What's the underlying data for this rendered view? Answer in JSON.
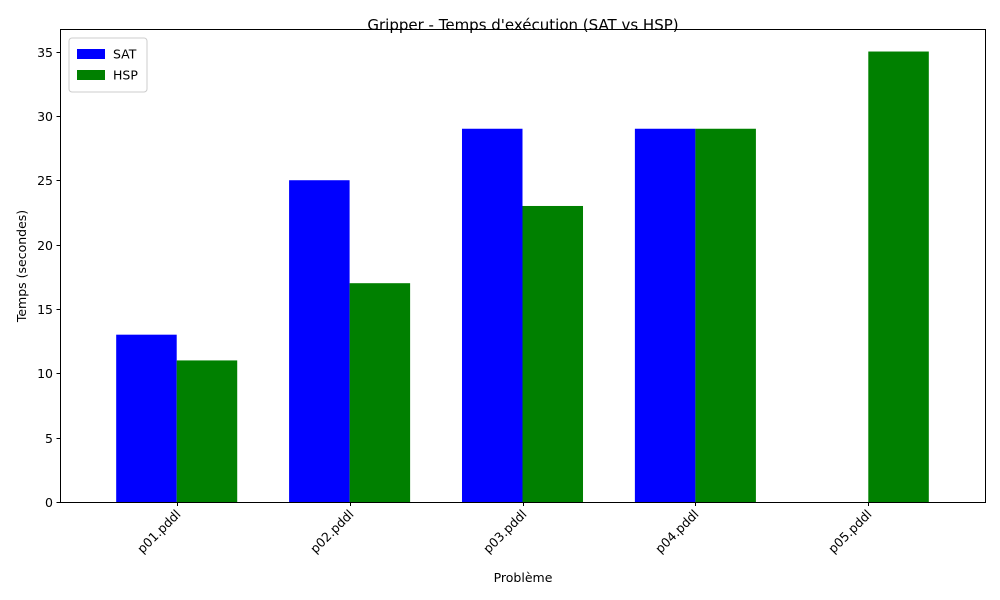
{
  "chart_data": {
    "type": "bar",
    "title": "Gripper - Temps d'exécution (SAT vs HSP)",
    "xlabel": "Problème",
    "ylabel": "Temps (secondes)",
    "categories": [
      "p01.pddl",
      "p02.pddl",
      "p03.pddl",
      "p04.pddl",
      "p05.pddl"
    ],
    "series": [
      {
        "name": "SAT",
        "color": "#0000ff",
        "values": [
          13,
          25,
          29,
          29,
          null
        ]
      },
      {
        "name": "HSP",
        "color": "#008000",
        "values": [
          11,
          17,
          23,
          29,
          35
        ]
      }
    ],
    "ylim": [
      0,
      36.75
    ],
    "yticks": [
      0,
      5,
      10,
      15,
      20,
      25,
      30,
      35
    ],
    "xtick_rotation": 45,
    "grid": false,
    "legend": "upper left"
  }
}
